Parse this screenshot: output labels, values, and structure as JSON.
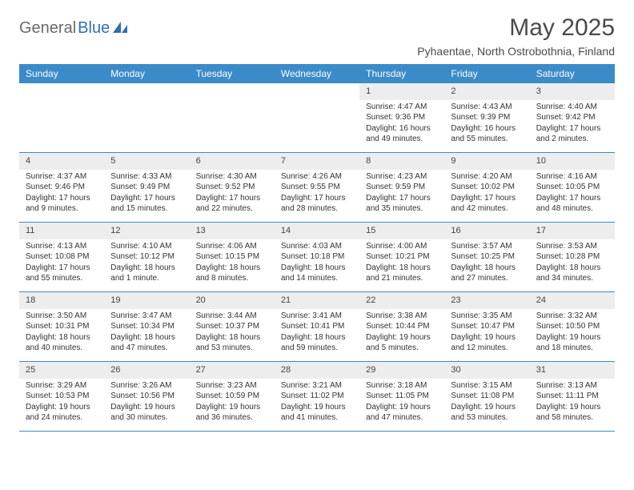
{
  "logo": {
    "text1": "General",
    "text2": "Blue"
  },
  "title": "May 2025",
  "location": "Pyhaentae, North Ostrobothnia, Finland",
  "colors": {
    "header_bg": "#3b8bc9",
    "header_text": "#ffffff",
    "daynum_bg": "#ededed",
    "border": "#3b8bc9",
    "logo_gray": "#6a6a6a",
    "logo_blue": "#2e6fb0",
    "text": "#333333"
  },
  "day_names": [
    "Sunday",
    "Monday",
    "Tuesday",
    "Wednesday",
    "Thursday",
    "Friday",
    "Saturday"
  ],
  "weeks": [
    [
      {
        "empty": true
      },
      {
        "empty": true
      },
      {
        "empty": true
      },
      {
        "empty": true
      },
      {
        "day": "1",
        "sunrise": "Sunrise: 4:47 AM",
        "sunset": "Sunset: 9:36 PM",
        "daylight": "Daylight: 16 hours and 49 minutes."
      },
      {
        "day": "2",
        "sunrise": "Sunrise: 4:43 AM",
        "sunset": "Sunset: 9:39 PM",
        "daylight": "Daylight: 16 hours and 55 minutes."
      },
      {
        "day": "3",
        "sunrise": "Sunrise: 4:40 AM",
        "sunset": "Sunset: 9:42 PM",
        "daylight": "Daylight: 17 hours and 2 minutes."
      }
    ],
    [
      {
        "day": "4",
        "sunrise": "Sunrise: 4:37 AM",
        "sunset": "Sunset: 9:46 PM",
        "daylight": "Daylight: 17 hours and 9 minutes."
      },
      {
        "day": "5",
        "sunrise": "Sunrise: 4:33 AM",
        "sunset": "Sunset: 9:49 PM",
        "daylight": "Daylight: 17 hours and 15 minutes."
      },
      {
        "day": "6",
        "sunrise": "Sunrise: 4:30 AM",
        "sunset": "Sunset: 9:52 PM",
        "daylight": "Daylight: 17 hours and 22 minutes."
      },
      {
        "day": "7",
        "sunrise": "Sunrise: 4:26 AM",
        "sunset": "Sunset: 9:55 PM",
        "daylight": "Daylight: 17 hours and 28 minutes."
      },
      {
        "day": "8",
        "sunrise": "Sunrise: 4:23 AM",
        "sunset": "Sunset: 9:59 PM",
        "daylight": "Daylight: 17 hours and 35 minutes."
      },
      {
        "day": "9",
        "sunrise": "Sunrise: 4:20 AM",
        "sunset": "Sunset: 10:02 PM",
        "daylight": "Daylight: 17 hours and 42 minutes."
      },
      {
        "day": "10",
        "sunrise": "Sunrise: 4:16 AM",
        "sunset": "Sunset: 10:05 PM",
        "daylight": "Daylight: 17 hours and 48 minutes."
      }
    ],
    [
      {
        "day": "11",
        "sunrise": "Sunrise: 4:13 AM",
        "sunset": "Sunset: 10:08 PM",
        "daylight": "Daylight: 17 hours and 55 minutes."
      },
      {
        "day": "12",
        "sunrise": "Sunrise: 4:10 AM",
        "sunset": "Sunset: 10:12 PM",
        "daylight": "Daylight: 18 hours and 1 minute."
      },
      {
        "day": "13",
        "sunrise": "Sunrise: 4:06 AM",
        "sunset": "Sunset: 10:15 PM",
        "daylight": "Daylight: 18 hours and 8 minutes."
      },
      {
        "day": "14",
        "sunrise": "Sunrise: 4:03 AM",
        "sunset": "Sunset: 10:18 PM",
        "daylight": "Daylight: 18 hours and 14 minutes."
      },
      {
        "day": "15",
        "sunrise": "Sunrise: 4:00 AM",
        "sunset": "Sunset: 10:21 PM",
        "daylight": "Daylight: 18 hours and 21 minutes."
      },
      {
        "day": "16",
        "sunrise": "Sunrise: 3:57 AM",
        "sunset": "Sunset: 10:25 PM",
        "daylight": "Daylight: 18 hours and 27 minutes."
      },
      {
        "day": "17",
        "sunrise": "Sunrise: 3:53 AM",
        "sunset": "Sunset: 10:28 PM",
        "daylight": "Daylight: 18 hours and 34 minutes."
      }
    ],
    [
      {
        "day": "18",
        "sunrise": "Sunrise: 3:50 AM",
        "sunset": "Sunset: 10:31 PM",
        "daylight": "Daylight: 18 hours and 40 minutes."
      },
      {
        "day": "19",
        "sunrise": "Sunrise: 3:47 AM",
        "sunset": "Sunset: 10:34 PM",
        "daylight": "Daylight: 18 hours and 47 minutes."
      },
      {
        "day": "20",
        "sunrise": "Sunrise: 3:44 AM",
        "sunset": "Sunset: 10:37 PM",
        "daylight": "Daylight: 18 hours and 53 minutes."
      },
      {
        "day": "21",
        "sunrise": "Sunrise: 3:41 AM",
        "sunset": "Sunset: 10:41 PM",
        "daylight": "Daylight: 18 hours and 59 minutes."
      },
      {
        "day": "22",
        "sunrise": "Sunrise: 3:38 AM",
        "sunset": "Sunset: 10:44 PM",
        "daylight": "Daylight: 19 hours and 5 minutes."
      },
      {
        "day": "23",
        "sunrise": "Sunrise: 3:35 AM",
        "sunset": "Sunset: 10:47 PM",
        "daylight": "Daylight: 19 hours and 12 minutes."
      },
      {
        "day": "24",
        "sunrise": "Sunrise: 3:32 AM",
        "sunset": "Sunset: 10:50 PM",
        "daylight": "Daylight: 19 hours and 18 minutes."
      }
    ],
    [
      {
        "day": "25",
        "sunrise": "Sunrise: 3:29 AM",
        "sunset": "Sunset: 10:53 PM",
        "daylight": "Daylight: 19 hours and 24 minutes."
      },
      {
        "day": "26",
        "sunrise": "Sunrise: 3:26 AM",
        "sunset": "Sunset: 10:56 PM",
        "daylight": "Daylight: 19 hours and 30 minutes."
      },
      {
        "day": "27",
        "sunrise": "Sunrise: 3:23 AM",
        "sunset": "Sunset: 10:59 PM",
        "daylight": "Daylight: 19 hours and 36 minutes."
      },
      {
        "day": "28",
        "sunrise": "Sunrise: 3:21 AM",
        "sunset": "Sunset: 11:02 PM",
        "daylight": "Daylight: 19 hours and 41 minutes."
      },
      {
        "day": "29",
        "sunrise": "Sunrise: 3:18 AM",
        "sunset": "Sunset: 11:05 PM",
        "daylight": "Daylight: 19 hours and 47 minutes."
      },
      {
        "day": "30",
        "sunrise": "Sunrise: 3:15 AM",
        "sunset": "Sunset: 11:08 PM",
        "daylight": "Daylight: 19 hours and 53 minutes."
      },
      {
        "day": "31",
        "sunrise": "Sunrise: 3:13 AM",
        "sunset": "Sunset: 11:11 PM",
        "daylight": "Daylight: 19 hours and 58 minutes."
      }
    ]
  ]
}
